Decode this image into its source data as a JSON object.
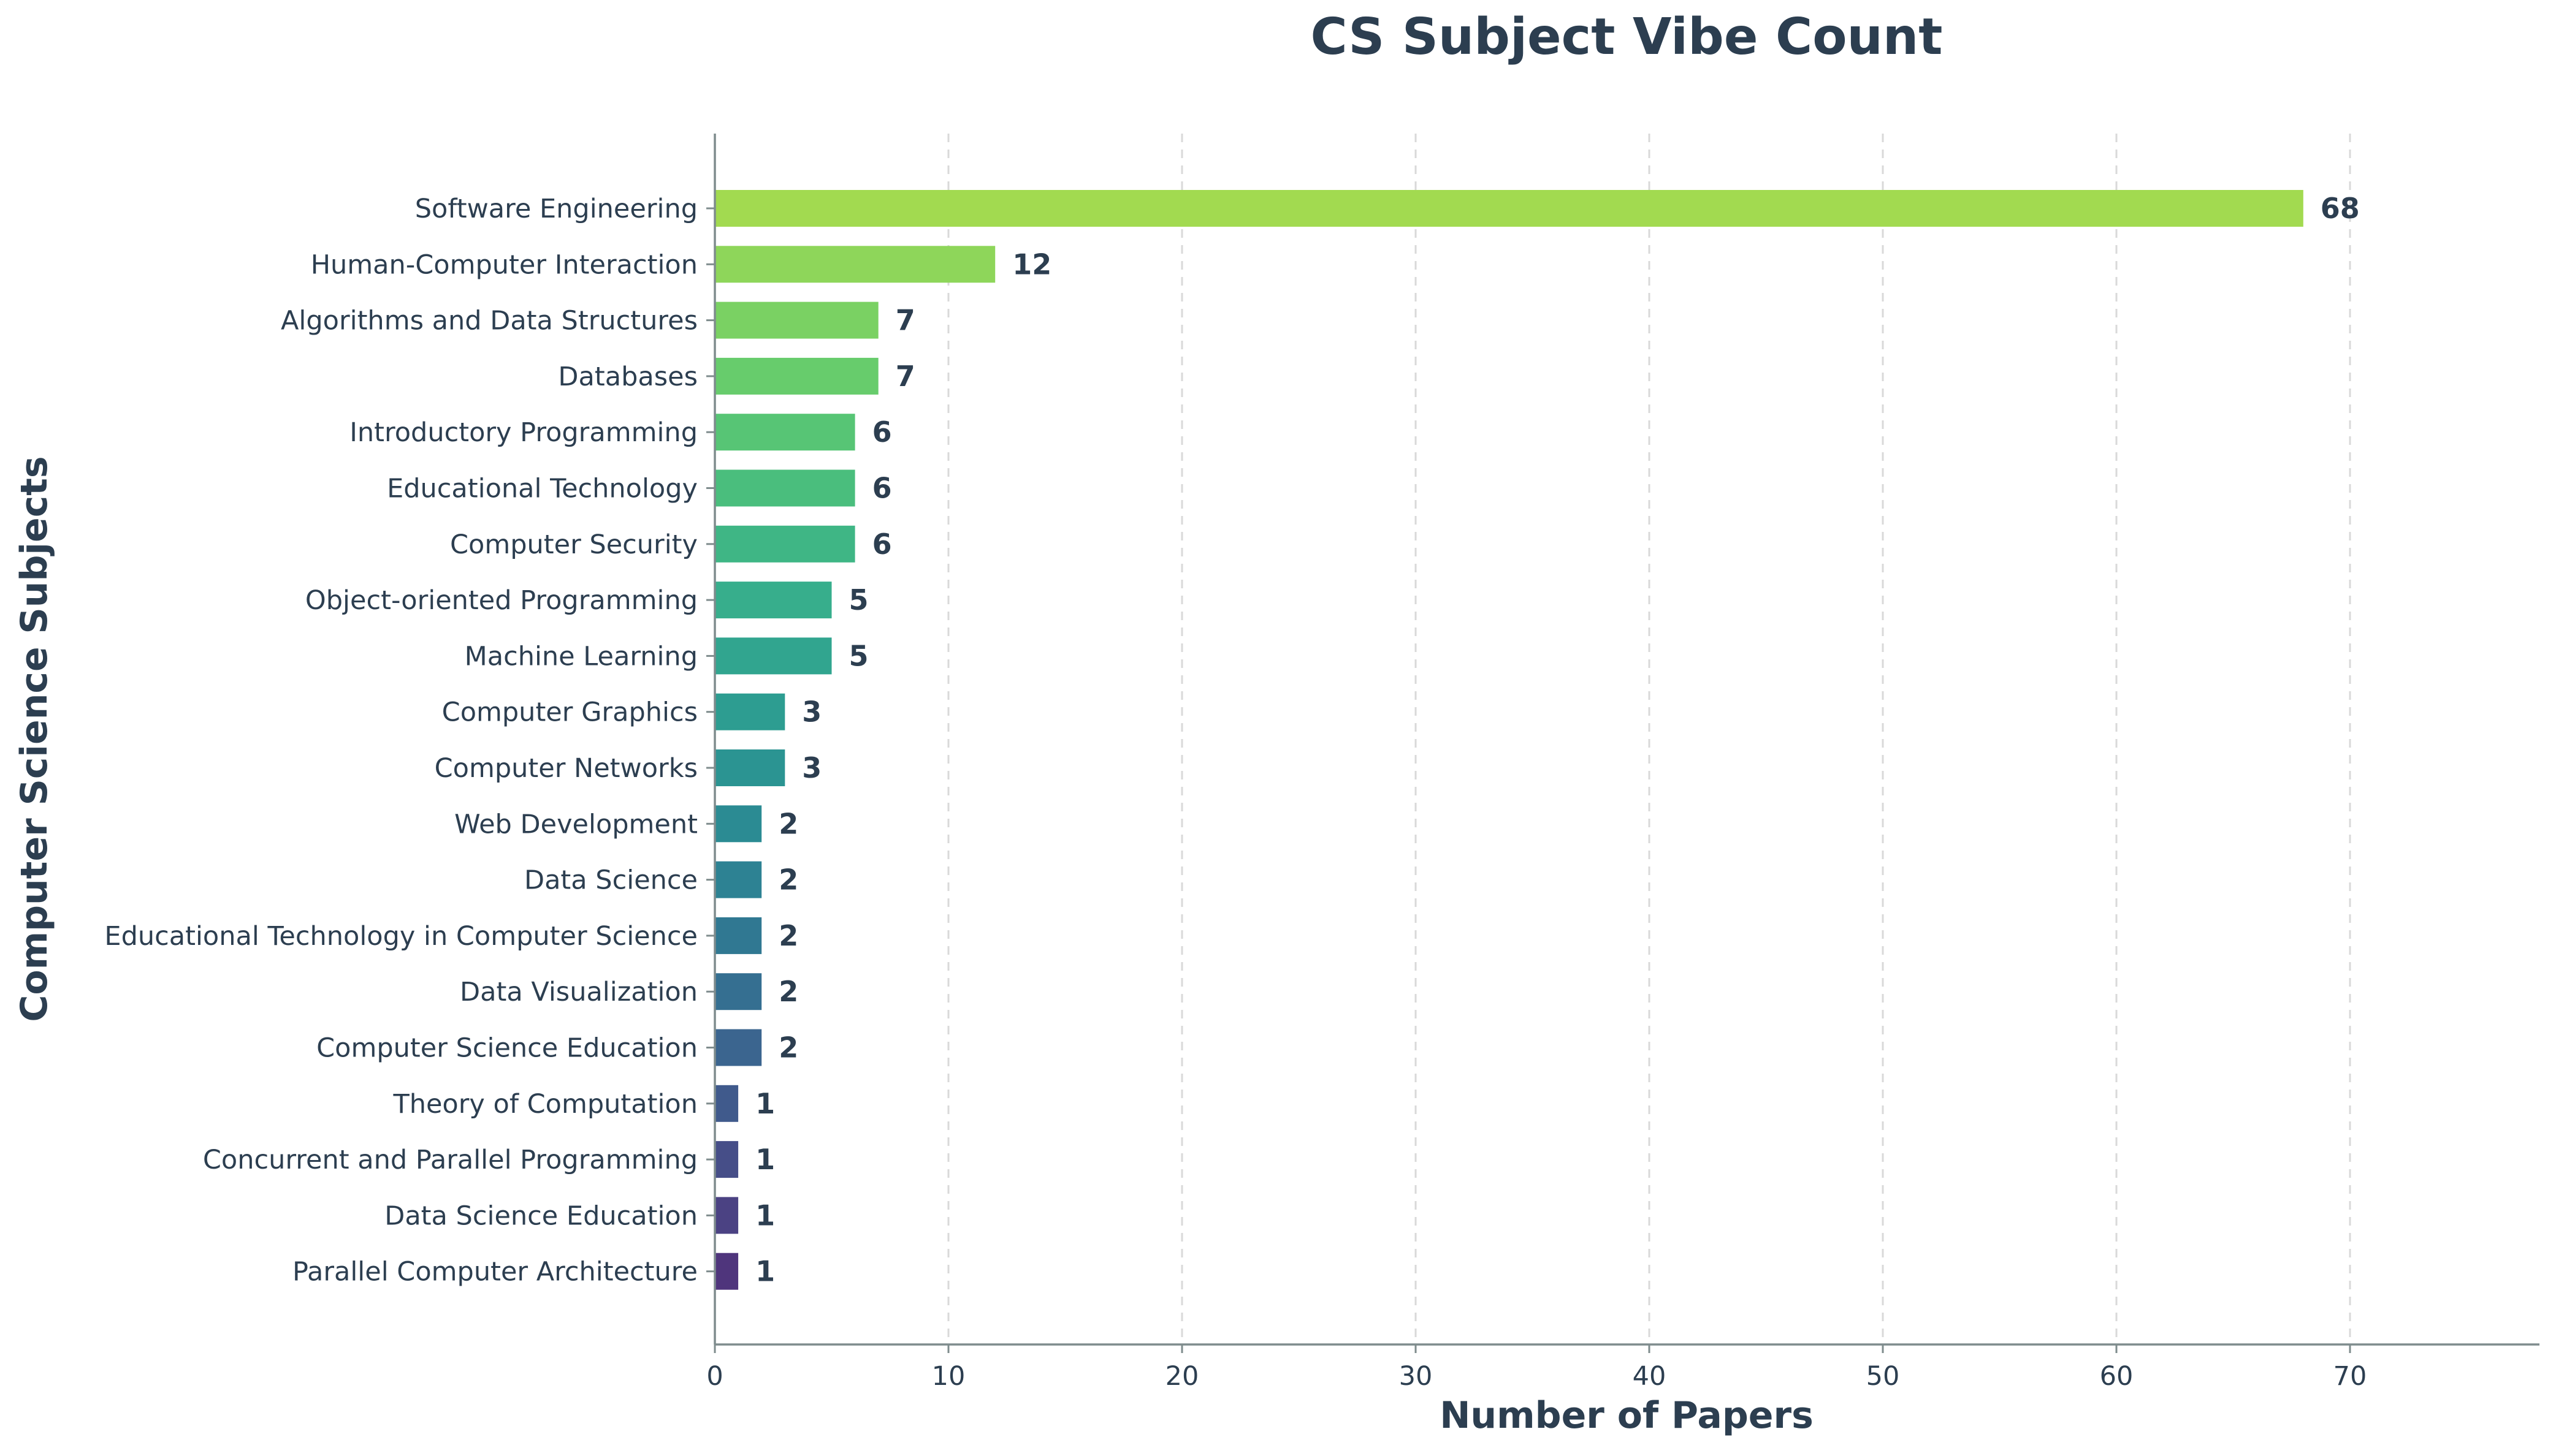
{
  "chart_data": {
    "type": "bar",
    "orientation": "horizontal",
    "title": "CS Subject Vibe Count",
    "xlabel": "Number of Papers",
    "ylabel": "Computer Science Subjects",
    "xlim": [
      0,
      78
    ],
    "xticks": [
      0,
      10,
      20,
      30,
      40,
      50,
      60,
      70
    ],
    "grid": "x-dashed",
    "legend": "none",
    "colormap": "viridis",
    "categories": [
      "Software Engineering",
      "Human-Computer Interaction",
      "Algorithms and Data Structures",
      "Databases",
      "Introductory Programming",
      "Educational Technology",
      "Computer Security",
      "Object-oriented Programming",
      "Machine Learning",
      "Computer Graphics",
      "Computer Networks",
      "Web Development",
      "Data Science",
      "Educational Technology in Computer Science",
      "Data Visualization",
      "Computer Science Education",
      "Theory of Computation",
      "Concurrent and Parallel Programming",
      "Data Science Education",
      "Parallel Computer Architecture"
    ],
    "values": [
      68,
      12,
      7,
      7,
      6,
      6,
      6,
      5,
      5,
      3,
      3,
      2,
      2,
      2,
      2,
      2,
      1,
      1,
      1,
      1
    ],
    "colors": [
      "#a2da50",
      "#8ed65a",
      "#7ad163",
      "#67cc6c",
      "#57c575",
      "#4abe7d",
      "#3fb685",
      "#37ae8c",
      "#31a58f",
      "#2d9d91",
      "#2b9492",
      "#2b8b93",
      "#2d8293",
      "#307892",
      "#356f91",
      "#3b658f",
      "#405a8c",
      "#464e88",
      "#4b4283",
      "#4f357c"
    ]
  }
}
